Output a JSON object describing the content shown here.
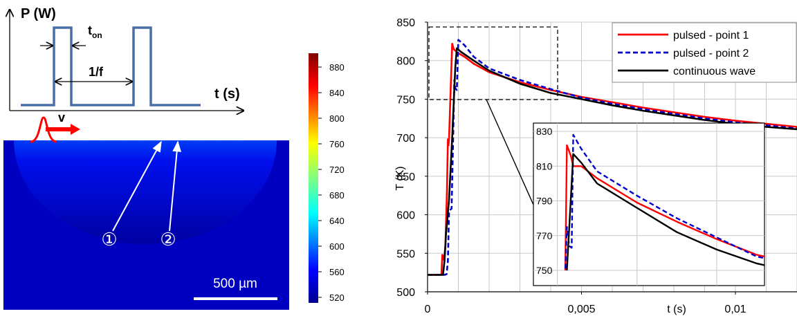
{
  "pulse_schematic": {
    "y_label": "P (W)",
    "x_label": "t (s)",
    "t_on_label": "t",
    "t_on_sub": "on",
    "period_label": "1/f",
    "line_color": "#4a6fa5"
  },
  "simulation": {
    "velocity_label": "v",
    "point_labels": [
      "①",
      "②"
    ],
    "scale_bar_label": "500 µm",
    "colorbar_ticks": [
      "880",
      "840",
      "800",
      "760",
      "720",
      "680",
      "640",
      "600",
      "560",
      "520"
    ]
  },
  "chart_data": {
    "type": "line",
    "ylabel": "T (K)",
    "xlabel": "t (s)",
    "xlim": [
      0,
      0.012
    ],
    "ylim": [
      500,
      850
    ],
    "x_tick_labels": [
      "0",
      "0,005",
      "0,01"
    ],
    "y_tick_labels": [
      "500",
      "550",
      "600",
      "650",
      "700",
      "750",
      "800",
      "850"
    ],
    "grid": true,
    "legend_position": "top-right",
    "series": [
      {
        "name": "pulsed - point 1",
        "color": "#ff0000",
        "dash": "solid",
        "points": [
          [
            0,
            522
          ],
          [
            0.00045,
            522
          ],
          [
            0.00048,
            548
          ],
          [
            0.00052,
            542
          ],
          [
            0.00055,
            548
          ],
          [
            0.00058,
            560
          ],
          [
            0.00063,
            630
          ],
          [
            0.00066,
            698
          ],
          [
            0.00068,
            690
          ],
          [
            0.0007,
            700
          ],
          [
            0.0008,
            822
          ],
          [
            0.00085,
            815
          ],
          [
            0.00095,
            811
          ],
          [
            0.0012,
            805
          ],
          [
            0.0015,
            796
          ],
          [
            0.002,
            785
          ],
          [
            0.003,
            772
          ],
          [
            0.004,
            762
          ],
          [
            0.005,
            753
          ],
          [
            0.006,
            746
          ],
          [
            0.007,
            739
          ],
          [
            0.008,
            733
          ],
          [
            0.009,
            727
          ],
          [
            0.01,
            722
          ],
          [
            0.011,
            718
          ],
          [
            0.012,
            714
          ]
        ]
      },
      {
        "name": "pulsed - point 2",
        "color": "#0000cc",
        "dash": "dashed",
        "points": [
          [
            0,
            522
          ],
          [
            0.00055,
            522
          ],
          [
            0.00062,
            523
          ],
          [
            0.00066,
            540
          ],
          [
            0.0007,
            605
          ],
          [
            0.00078,
            608
          ],
          [
            0.00082,
            680
          ],
          [
            0.00087,
            775
          ],
          [
            0.0009,
            764
          ],
          [
            0.00095,
            762
          ],
          [
            0.001,
            827
          ],
          [
            0.0012,
            820
          ],
          [
            0.0015,
            805
          ],
          [
            0.002,
            790
          ],
          [
            0.003,
            775
          ],
          [
            0.004,
            763
          ],
          [
            0.005,
            752
          ],
          [
            0.006,
            744
          ],
          [
            0.007,
            737
          ],
          [
            0.008,
            731
          ],
          [
            0.009,
            725
          ],
          [
            0.01,
            720
          ],
          [
            0.011,
            716
          ],
          [
            0.012,
            712
          ]
        ]
      },
      {
        "name": "continuous wave",
        "color": "#000000",
        "dash": "solid",
        "points": [
          [
            0,
            522
          ],
          [
            0.0005,
            522
          ],
          [
            0.00055,
            540
          ],
          [
            0.0006,
            575
          ],
          [
            0.0007,
            620
          ],
          [
            0.0008,
            700
          ],
          [
            0.0009,
            790
          ],
          [
            0.00095,
            816
          ],
          [
            0.0011,
            811
          ],
          [
            0.0015,
            800
          ],
          [
            0.002,
            787
          ],
          [
            0.003,
            770
          ],
          [
            0.004,
            758
          ],
          [
            0.005,
            750
          ],
          [
            0.006,
            742
          ],
          [
            0.007,
            735
          ],
          [
            0.008,
            729
          ],
          [
            0.009,
            723
          ],
          [
            0.01,
            718
          ],
          [
            0.011,
            714
          ],
          [
            0.012,
            711
          ]
        ]
      }
    ],
    "inset": {
      "xlim": [
        0.0012,
        0.0041
      ],
      "ylim": [
        750,
        830
      ],
      "y_tick_labels": [
        "830",
        "810",
        "790",
        "770",
        "750"
      ],
      "series": [
        {
          "name": "pulsed - point 1",
          "points": [
            [
              0.0016,
              750
            ],
            [
              0.00162,
              822
            ],
            [
              0.00167,
              816
            ],
            [
              0.0017,
              810
            ],
            [
              0.0018,
              810
            ],
            [
              0.002,
              803
            ],
            [
              0.0025,
              789
            ],
            [
              0.003,
              778
            ],
            [
              0.0035,
              768
            ],
            [
              0.004,
              759
            ],
            [
              0.0041,
              758
            ]
          ]
        },
        {
          "name": "pulsed - point 2",
          "points": [
            [
              0.0016,
              751
            ],
            [
              0.00162,
              775
            ],
            [
              0.00165,
              764
            ],
            [
              0.00168,
              763
            ],
            [
              0.0017,
              828
            ],
            [
              0.0018,
              820
            ],
            [
              0.002,
              807
            ],
            [
              0.0025,
              793
            ],
            [
              0.003,
              780
            ],
            [
              0.0035,
              769
            ],
            [
              0.004,
              758
            ],
            [
              0.0041,
              757
            ]
          ]
        },
        {
          "name": "continuous wave",
          "points": [
            [
              0.00162,
              750
            ],
            [
              0.0017,
              817
            ],
            [
              0.0018,
              812
            ],
            [
              0.002,
              800
            ],
            [
              0.0025,
              786
            ],
            [
              0.003,
              772
            ],
            [
              0.0035,
              762
            ],
            [
              0.004,
              754
            ],
            [
              0.0041,
              753
            ]
          ]
        }
      ]
    }
  }
}
